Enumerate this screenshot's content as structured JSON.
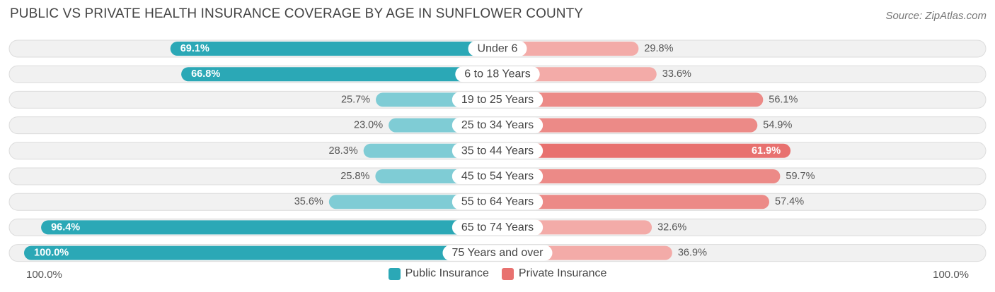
{
  "header": {
    "title": "PUBLIC VS PRIVATE HEALTH INSURANCE COVERAGE BY AGE IN SUNFLOWER COUNTY",
    "source": "Source: ZipAtlas.com"
  },
  "axis": {
    "left_label": "100.0%",
    "right_label": "100.0%"
  },
  "colors": {
    "public_dark": "#2ba8b6",
    "public_light": "#7fccd5",
    "private_dark": "#e8716f",
    "private_light": "#f3aba8",
    "track": "#f1f1f1",
    "track_border": "#dcdcdc"
  },
  "chart_data": {
    "type": "bar",
    "orientation": "horizontal-diverging",
    "title": "PUBLIC VS PRIVATE HEALTH INSURANCE COVERAGE BY AGE IN SUNFLOWER COUNTY",
    "categories": [
      "Under 6",
      "6 to 18 Years",
      "19 to 25 Years",
      "25 to 34 Years",
      "35 to 44 Years",
      "45 to 54 Years",
      "55 to 64 Years",
      "65 to 74 Years",
      "75 Years and over"
    ],
    "series": [
      {
        "name": "Public Insurance",
        "values": [
          69.1,
          66.8,
          25.7,
          23.0,
          28.3,
          25.8,
          35.6,
          96.4,
          100.0
        ],
        "labels": [
          "69.1%",
          "66.8%",
          "25.7%",
          "23.0%",
          "28.3%",
          "25.8%",
          "35.6%",
          "96.4%",
          "100.0%"
        ]
      },
      {
        "name": "Private Insurance",
        "values": [
          29.8,
          33.6,
          56.1,
          54.9,
          61.9,
          59.7,
          57.4,
          32.6,
          36.9
        ],
        "labels": [
          "29.8%",
          "33.6%",
          "56.1%",
          "54.9%",
          "61.9%",
          "59.7%",
          "57.4%",
          "32.6%",
          "36.9%"
        ]
      }
    ],
    "xlim": [
      0,
      100
    ],
    "unit": "%",
    "legend": "bottom-center"
  }
}
